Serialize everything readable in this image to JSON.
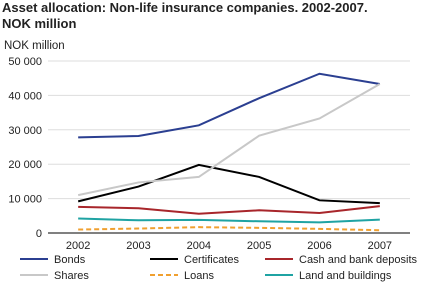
{
  "chart_data": {
    "type": "line",
    "title": "Asset allocation: Non-life insurance companies. 2002-2007.",
    "subtitle": "NOK million",
    "y_label": "NOK million",
    "categories": [
      "2002",
      "2003",
      "2004",
      "2005",
      "2006",
      "2007"
    ],
    "series": [
      {
        "name": "Bonds",
        "color": "#2b3f91",
        "values": [
          27800,
          28200,
          31300,
          39200,
          46300,
          43300
        ]
      },
      {
        "name": "Certificates",
        "color": "#000000",
        "values": [
          9200,
          13500,
          19800,
          16300,
          9500,
          8700
        ]
      },
      {
        "name": "Cash and bank deposits",
        "color": "#a8262b",
        "values": [
          7600,
          7200,
          5600,
          6600,
          5800,
          7800
        ]
      },
      {
        "name": "Shares",
        "color": "#c8c8c8",
        "values": [
          11000,
          14700,
          16300,
          28300,
          33300,
          43300
        ]
      },
      {
        "name": "Loans",
        "color": "#f0a030",
        "dashed": true,
        "values": [
          1000,
          1300,
          1700,
          1500,
          1200,
          800
        ]
      },
      {
        "name": "Land and buildings",
        "color": "#1fa3a3",
        "values": [
          4200,
          3700,
          3800,
          3400,
          3100,
          3900
        ]
      }
    ],
    "ylim": [
      0,
      50000
    ],
    "yticks": [
      {
        "value": 0,
        "label": "0"
      },
      {
        "value": 10000,
        "label": "10 000"
      },
      {
        "value": 20000,
        "label": "20 000"
      },
      {
        "value": 30000,
        "label": "30 000"
      },
      {
        "value": 40000,
        "label": "40 000"
      },
      {
        "value": 50000,
        "label": "50 000"
      }
    ],
    "grid": true
  }
}
